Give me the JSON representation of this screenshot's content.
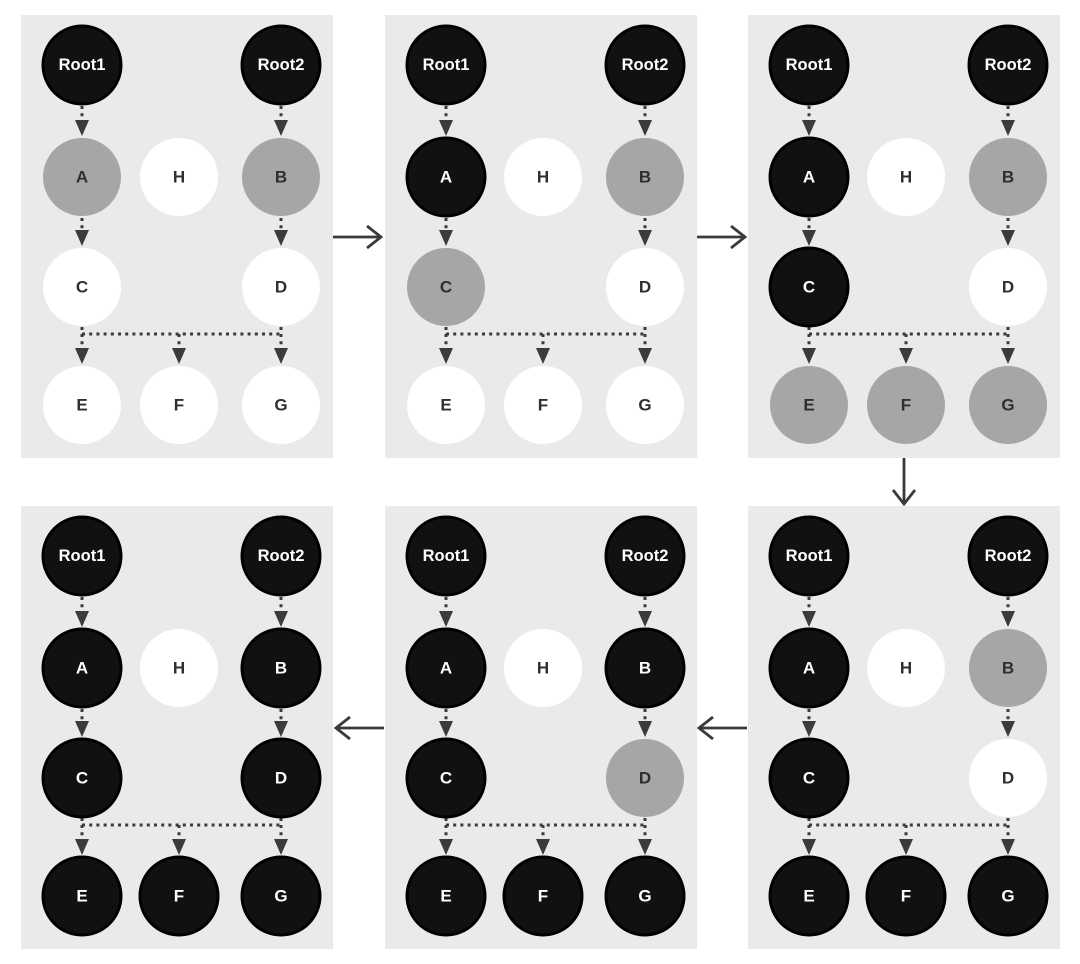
{
  "figure": {
    "kind": "graph-traversal-steps",
    "panel_count": 6,
    "reading_order": [
      "step-1",
      "step-2",
      "step-3",
      "step-4",
      "step-5",
      "step-6"
    ]
  },
  "nodes": [
    {
      "id": "root1",
      "label": "Root1",
      "col": 0,
      "row": 0
    },
    {
      "id": "root2",
      "label": "Root2",
      "col": 2,
      "row": 0
    },
    {
      "id": "a",
      "label": "A",
      "col": 0,
      "row": 1
    },
    {
      "id": "h",
      "label": "H",
      "col": 1,
      "row": 1
    },
    {
      "id": "b",
      "label": "B",
      "col": 2,
      "row": 1
    },
    {
      "id": "c",
      "label": "C",
      "col": 0,
      "row": 2
    },
    {
      "id": "d",
      "label": "D",
      "col": 2,
      "row": 2
    },
    {
      "id": "e",
      "label": "E",
      "col": 0,
      "row": 3
    },
    {
      "id": "f",
      "label": "F",
      "col": 1,
      "row": 3
    },
    {
      "id": "g",
      "label": "G",
      "col": 2,
      "row": 3
    }
  ],
  "edges": [
    {
      "from": "root1",
      "to": "a",
      "style": "dotted-arrow"
    },
    {
      "from": "root2",
      "to": "b",
      "style": "dotted-arrow"
    },
    {
      "from": "a",
      "to": "c",
      "style": "dotted-arrow"
    },
    {
      "from": "b",
      "to": "d",
      "style": "dotted-arrow"
    },
    {
      "from": "c",
      "to": "e",
      "style": "dotted-arrow-bus"
    },
    {
      "from": "c",
      "to": "f",
      "style": "dotted-arrow-bus"
    },
    {
      "from": "c",
      "to": "g",
      "style": "dotted-arrow-bus"
    },
    {
      "from": "d",
      "to": "g",
      "style": "dotted-arrow-bus"
    }
  ],
  "panels": [
    {
      "id": "step-1",
      "position": "top-left",
      "states": {
        "root1": "black",
        "root2": "black",
        "a": "gray",
        "h": "white",
        "b": "gray",
        "c": "white",
        "d": "white",
        "e": "white",
        "f": "white",
        "g": "white"
      }
    },
    {
      "id": "step-2",
      "position": "top-middle",
      "states": {
        "root1": "black",
        "root2": "black",
        "a": "black",
        "h": "white",
        "b": "gray",
        "c": "gray",
        "d": "white",
        "e": "white",
        "f": "white",
        "g": "white"
      }
    },
    {
      "id": "step-3",
      "position": "top-right",
      "states": {
        "root1": "black",
        "root2": "black",
        "a": "black",
        "h": "white",
        "b": "gray",
        "c": "black",
        "d": "white",
        "e": "gray",
        "f": "gray",
        "g": "gray"
      }
    },
    {
      "id": "step-4",
      "position": "bottom-right",
      "states": {
        "root1": "black",
        "root2": "black",
        "a": "black",
        "h": "white",
        "b": "gray",
        "c": "black",
        "d": "white",
        "e": "black",
        "f": "black",
        "g": "black"
      }
    },
    {
      "id": "step-5",
      "position": "bottom-middle",
      "states": {
        "root1": "black",
        "root2": "black",
        "a": "black",
        "h": "white",
        "b": "black",
        "c": "black",
        "d": "gray",
        "e": "black",
        "f": "black",
        "g": "black"
      }
    },
    {
      "id": "step-6",
      "position": "bottom-left",
      "states": {
        "root1": "black",
        "root2": "black",
        "a": "black",
        "h": "white",
        "b": "black",
        "c": "black",
        "d": "black",
        "e": "black",
        "f": "black",
        "g": "black"
      }
    }
  ],
  "flow_arrows": [
    {
      "from": "step-1",
      "to": "step-2",
      "direction": "right"
    },
    {
      "from": "step-2",
      "to": "step-3",
      "direction": "right"
    },
    {
      "from": "step-3",
      "to": "step-4",
      "direction": "down"
    },
    {
      "from": "step-4",
      "to": "step-5",
      "direction": "left"
    },
    {
      "from": "step-5",
      "to": "step-6",
      "direction": "left"
    }
  ],
  "colors": {
    "page_bg": "#ffffff",
    "panel_bg": "#eaeaea",
    "black_node": "#111111",
    "black_node_ring": "#000000",
    "gray_node": "#a6a6a6",
    "white_node": "#ffffff",
    "edge": "#3b3b3b",
    "flow_arrow": "#3a3a3a",
    "text_on_dark": "#ffffff",
    "text_on_light": "#2f2f2f"
  }
}
